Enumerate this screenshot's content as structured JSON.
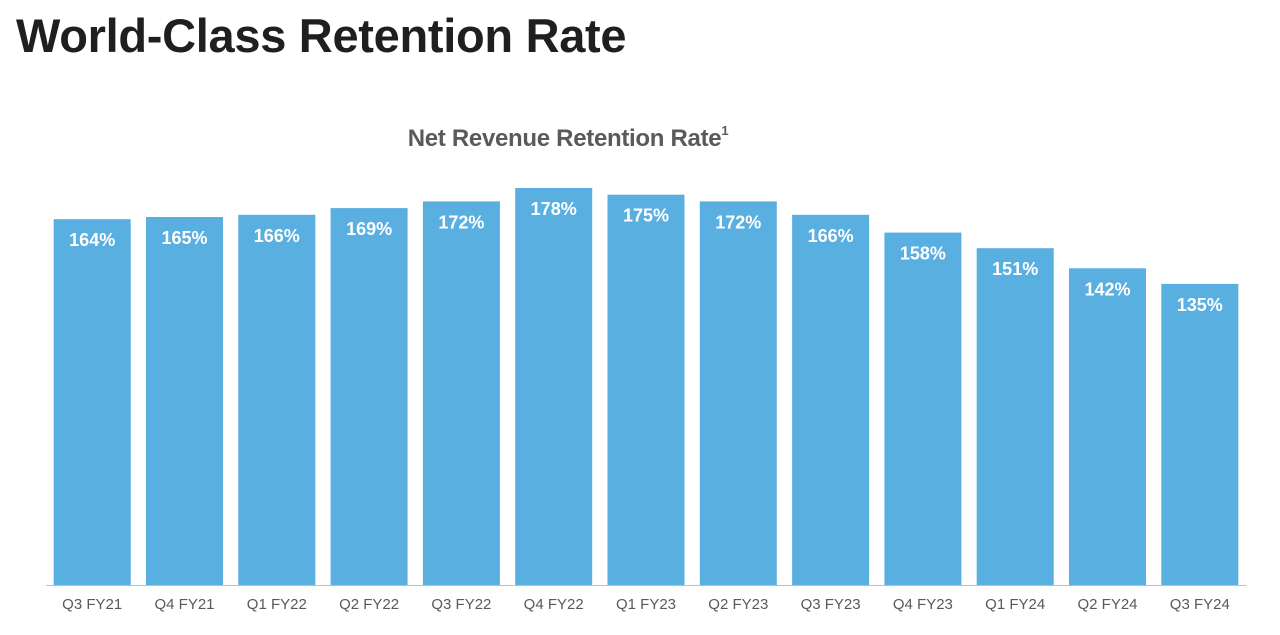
{
  "page": {
    "title": "World-Class Retention Rate"
  },
  "chart_data": {
    "type": "bar",
    "title": "Net Revenue Retention Rate",
    "title_footnote_marker": "1",
    "xlabel": "",
    "ylabel": "",
    "ylim": [
      0,
      200
    ],
    "grid": false,
    "legend": "none",
    "categories": [
      "Q3 FY21",
      "Q4 FY21",
      "Q1 FY22",
      "Q2 FY22",
      "Q3 FY22",
      "Q4 FY22",
      "Q1 FY23",
      "Q2 FY23",
      "Q3 FY23",
      "Q4 FY23",
      "Q1 FY24",
      "Q2 FY24",
      "Q3 FY24"
    ],
    "values": [
      164,
      165,
      166,
      169,
      172,
      178,
      175,
      172,
      166,
      158,
      151,
      142,
      135
    ],
    "data_labels": [
      "164%",
      "165%",
      "166%",
      "169%",
      "172%",
      "178%",
      "175%",
      "172%",
      "166%",
      "158%",
      "151%",
      "142%",
      "135%"
    ],
    "bar_color": "#5aafe1",
    "label_color": "#ffffff",
    "axis_color": "#bfbfbf",
    "tick_label_color": "#595959"
  }
}
